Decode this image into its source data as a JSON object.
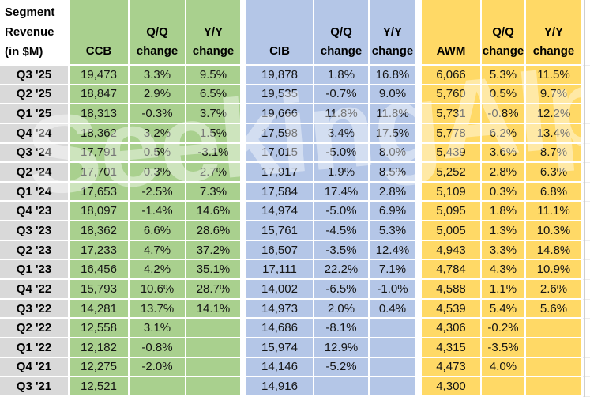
{
  "corner": {
    "line1": "Segment",
    "line2": "Revenue",
    "line3": "(in $M)"
  },
  "sections": {
    "ccb": {
      "name": "CCB",
      "qq": "Q/Q change",
      "yy": "Y/Y change"
    },
    "cib": {
      "name": "CIB",
      "qq": "Q/Q change",
      "yy": "Y/Y change"
    },
    "awm": {
      "name": "AWM",
      "qq": "Q/Q change",
      "yy": "Y/Y change"
    }
  },
  "colors": {
    "ccb_fill": "#A9D08E",
    "cib_fill": "#B4C6E7",
    "awm_fill": "#FFD966",
    "label_fill": "#D9D9D9",
    "gridline": "#FFFFFF"
  },
  "watermark": {
    "text": "SeekingAlpha"
  },
  "rows": [
    {
      "q": "Q3 '25",
      "ccb": "19,473",
      "ccb_qq": "3.3%",
      "ccb_yy": "9.5%",
      "cib": "19,878",
      "cib_qq": "1.8%",
      "cib_yy": "16.8%",
      "awm": "6,066",
      "awm_qq": "5.3%",
      "awm_yy": "11.5%"
    },
    {
      "q": "Q2 '25",
      "ccb": "18,847",
      "ccb_qq": "2.9%",
      "ccb_yy": "6.5%",
      "cib": "19,535",
      "cib_qq": "-0.7%",
      "cib_yy": "9.0%",
      "awm": "5,760",
      "awm_qq": "0.5%",
      "awm_yy": "9.7%"
    },
    {
      "q": "Q1 '25",
      "ccb": "18,313",
      "ccb_qq": "-0.3%",
      "ccb_yy": "3.7%",
      "cib": "19,666",
      "cib_qq": "11.8%",
      "cib_yy": "11.8%",
      "awm": "5,731",
      "awm_qq": "-0.8%",
      "awm_yy": "12.2%"
    },
    {
      "q": "Q4 '24",
      "ccb": "18,362",
      "ccb_qq": "3.2%",
      "ccb_yy": "1.5%",
      "cib": "17,598",
      "cib_qq": "3.4%",
      "cib_yy": "17.5%",
      "awm": "5,778",
      "awm_qq": "6.2%",
      "awm_yy": "13.4%"
    },
    {
      "q": "Q3 '24",
      "ccb": "17,791",
      "ccb_qq": "0.5%",
      "ccb_yy": "-3.1%",
      "cib": "17,015",
      "cib_qq": "-5.0%",
      "cib_yy": "8.0%",
      "awm": "5,439",
      "awm_qq": "3.6%",
      "awm_yy": "8.7%"
    },
    {
      "q": "Q2 '24",
      "ccb": "17,701",
      "ccb_qq": "0.3%",
      "ccb_yy": "2.7%",
      "cib": "17,917",
      "cib_qq": "1.9%",
      "cib_yy": "8.5%",
      "awm": "5,252",
      "awm_qq": "2.8%",
      "awm_yy": "6.3%"
    },
    {
      "q": "Q1 '24",
      "ccb": "17,653",
      "ccb_qq": "-2.5%",
      "ccb_yy": "7.3%",
      "cib": "17,584",
      "cib_qq": "17.4%",
      "cib_yy": "2.8%",
      "awm": "5,109",
      "awm_qq": "0.3%",
      "awm_yy": "6.8%"
    },
    {
      "q": "Q4 '23",
      "ccb": "18,097",
      "ccb_qq": "-1.4%",
      "ccb_yy": "14.6%",
      "cib": "14,974",
      "cib_qq": "-5.0%",
      "cib_yy": "6.9%",
      "awm": "5,095",
      "awm_qq": "1.8%",
      "awm_yy": "11.1%"
    },
    {
      "q": "Q3 '23",
      "ccb": "18,362",
      "ccb_qq": "6.6%",
      "ccb_yy": "28.6%",
      "cib": "15,761",
      "cib_qq": "-4.5%",
      "cib_yy": "5.3%",
      "awm": "5,005",
      "awm_qq": "1.3%",
      "awm_yy": "10.3%"
    },
    {
      "q": "Q2 '23",
      "ccb": "17,233",
      "ccb_qq": "4.7%",
      "ccb_yy": "37.2%",
      "cib": "16,507",
      "cib_qq": "-3.5%",
      "cib_yy": "12.4%",
      "awm": "4,943",
      "awm_qq": "3.3%",
      "awm_yy": "14.8%"
    },
    {
      "q": "Q1 '23",
      "ccb": "16,456",
      "ccb_qq": "4.2%",
      "ccb_yy": "35.1%",
      "cib": "17,111",
      "cib_qq": "22.2%",
      "cib_yy": "7.1%",
      "awm": "4,784",
      "awm_qq": "4.3%",
      "awm_yy": "10.9%"
    },
    {
      "q": "Q4 '22",
      "ccb": "15,793",
      "ccb_qq": "10.6%",
      "ccb_yy": "28.7%",
      "cib": "14,002",
      "cib_qq": "-6.5%",
      "cib_yy": "-1.0%",
      "awm": "4,588",
      "awm_qq": "1.1%",
      "awm_yy": "2.6%"
    },
    {
      "q": "Q3 '22",
      "ccb": "14,281",
      "ccb_qq": "13.7%",
      "ccb_yy": "14.1%",
      "cib": "14,973",
      "cib_qq": "2.0%",
      "cib_yy": "0.4%",
      "awm": "4,539",
      "awm_qq": "5.4%",
      "awm_yy": "5.6%"
    },
    {
      "q": "Q2 '22",
      "ccb": "12,558",
      "ccb_qq": "3.1%",
      "ccb_yy": "",
      "cib": "14,686",
      "cib_qq": "-8.1%",
      "cib_yy": "",
      "awm": "4,306",
      "awm_qq": "-0.2%",
      "awm_yy": ""
    },
    {
      "q": "Q1 '22",
      "ccb": "12,182",
      "ccb_qq": "-0.8%",
      "ccb_yy": "",
      "cib": "15,974",
      "cib_qq": "12.9%",
      "cib_yy": "",
      "awm": "4,315",
      "awm_qq": "-3.5%",
      "awm_yy": ""
    },
    {
      "q": "Q4 '21",
      "ccb": "12,275",
      "ccb_qq": "-2.0%",
      "ccb_yy": "",
      "cib": "14,146",
      "cib_qq": "-5.2%",
      "cib_yy": "",
      "awm": "4,473",
      "awm_qq": "4.0%",
      "awm_yy": ""
    },
    {
      "q": "Q3 '21",
      "ccb": "12,521",
      "ccb_qq": "",
      "ccb_yy": "",
      "cib": "14,916",
      "cib_qq": "",
      "cib_yy": "",
      "awm": "4,300",
      "awm_qq": "",
      "awm_yy": ""
    }
  ]
}
